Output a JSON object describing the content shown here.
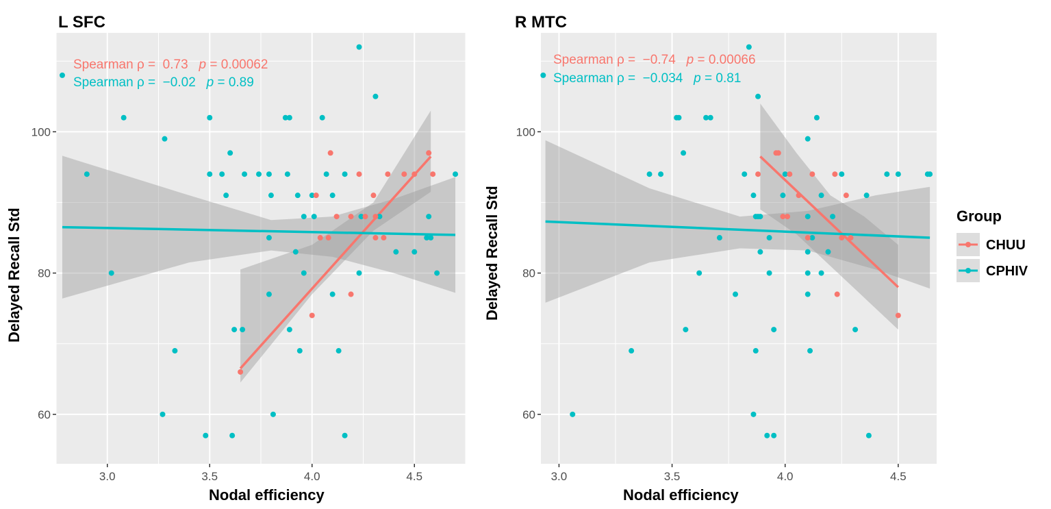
{
  "legend": {
    "title": "Group",
    "entries": [
      {
        "label": "CHUU",
        "color": "#F8766D"
      },
      {
        "label": "CPHIV",
        "color": "#00BFC4"
      }
    ]
  },
  "colors": {
    "panel_bg": "#EBEBEB",
    "grid": "#FFFFFF",
    "ribbon": "#999999"
  },
  "chart_data": [
    {
      "type": "scatter",
      "title": "L SFC",
      "xlabel": "Nodal efficiency",
      "ylabel": "Delayed Recall Std",
      "xlim": [
        2.75,
        4.75
      ],
      "ylim": [
        53,
        114
      ],
      "x_ticks": [
        3.0,
        3.5,
        4.0,
        4.5
      ],
      "x_tick_labels": [
        "3.0",
        "3.5",
        "4.0",
        "4.5"
      ],
      "y_ticks": [
        60,
        80,
        100
      ],
      "y_tick_labels": [
        "60",
        "80",
        "100"
      ],
      "annotations": [
        {
          "group": "CHUU",
          "label": "Spearman ρ = ",
          "rho": "0.73",
          "p_label": "p",
          "p_value": " = 0.00062"
        },
        {
          "group": "CPHIV",
          "label": "Spearman ρ = ",
          "rho": "−0.02",
          "p_label": "p",
          "p_value": " = 0.89"
        }
      ],
      "series": [
        {
          "name": "CHUU",
          "fit": {
            "x": [
              3.65,
              4.58
            ],
            "y": [
              66.5,
              96.5
            ]
          },
          "ribbon": {
            "x": [
              3.65,
              4.0,
              4.3,
              4.58
            ],
            "lower": [
              64.5,
              77,
              86,
              91.5
            ],
            "upper": [
              80.5,
              84,
              90,
              103
            ]
          },
          "points": [
            [
              3.65,
              66
            ],
            [
              4.0,
              74
            ],
            [
              4.02,
              91
            ],
            [
              4.04,
              85
            ],
            [
              4.08,
              85
            ],
            [
              4.09,
              97
            ],
            [
              4.19,
              77
            ],
            [
              4.19,
              88
            ],
            [
              4.23,
              94
            ],
            [
              4.3,
              91
            ],
            [
              4.31,
              85
            ],
            [
              4.31,
              88
            ],
            [
              4.35,
              85
            ],
            [
              4.37,
              94
            ],
            [
              4.45,
              94
            ],
            [
              4.5,
              94
            ],
            [
              4.57,
              97
            ],
            [
              4.59,
              94
            ],
            [
              4.26,
              88
            ],
            [
              4.12,
              88
            ]
          ]
        },
        {
          "name": "CPHIV",
          "fit": {
            "x": [
              2.78,
              4.7
            ],
            "y": [
              86.5,
              85.4
            ]
          },
          "ribbon": {
            "x": [
              2.78,
              3.4,
              3.8,
              4.1,
              4.4,
              4.7
            ],
            "lower": [
              76.4,
              81.5,
              83.2,
              82.3,
              80,
              77.2
            ],
            "upper": [
              96.6,
              91,
              87.5,
              88,
              90.5,
              93.6
            ]
          },
          "points": [
            [
              2.78,
              108
            ],
            [
              2.9,
              94
            ],
            [
              3.02,
              80
            ],
            [
              3.08,
              102
            ],
            [
              3.27,
              60
            ],
            [
              3.28,
              99
            ],
            [
              3.33,
              69
            ],
            [
              3.48,
              57
            ],
            [
              3.5,
              94
            ],
            [
              3.5,
              102
            ],
            [
              3.56,
              94
            ],
            [
              3.58,
              91
            ],
            [
              3.6,
              97
            ],
            [
              3.61,
              57
            ],
            [
              3.62,
              72
            ],
            [
              3.66,
              72
            ],
            [
              3.67,
              94
            ],
            [
              3.74,
              94
            ],
            [
              3.79,
              94
            ],
            [
              3.79,
              85
            ],
            [
              3.79,
              77
            ],
            [
              3.8,
              91
            ],
            [
              3.81,
              60
            ],
            [
              3.87,
              102
            ],
            [
              3.88,
              94
            ],
            [
              3.89,
              102
            ],
            [
              3.89,
              72
            ],
            [
              3.92,
              83
            ],
            [
              3.93,
              91
            ],
            [
              3.94,
              69
            ],
            [
              3.96,
              88
            ],
            [
              3.96,
              80
            ],
            [
              4.0,
              91
            ],
            [
              4.01,
              88
            ],
            [
              4.05,
              102
            ],
            [
              4.07,
              94
            ],
            [
              4.1,
              91
            ],
            [
              4.1,
              77
            ],
            [
              4.13,
              69
            ],
            [
              4.16,
              57
            ],
            [
              4.16,
              94
            ],
            [
              4.23,
              112
            ],
            [
              4.23,
              80
            ],
            [
              4.24,
              88
            ],
            [
              4.31,
              105
            ],
            [
              4.33,
              88
            ],
            [
              4.41,
              83
            ],
            [
              4.5,
              83
            ],
            [
              4.56,
              85
            ],
            [
              4.57,
              88
            ],
            [
              4.58,
              85
            ],
            [
              4.61,
              80
            ],
            [
              4.7,
              94
            ]
          ]
        }
      ]
    },
    {
      "type": "scatter",
      "title": "R MTC",
      "xlabel": "Nodal efficiency",
      "ylabel": "Delayed Recall Std",
      "xlim": [
        2.92,
        4.67
      ],
      "ylim": [
        53,
        114
      ],
      "x_ticks": [
        3.0,
        3.5,
        4.0,
        4.5
      ],
      "x_tick_labels": [
        "3.0",
        "3.5",
        "4.0",
        "4.5"
      ],
      "y_ticks": [
        60,
        80,
        100
      ],
      "y_tick_labels": [
        "60",
        "80",
        "100"
      ],
      "annotations": [
        {
          "group": "CHUU",
          "label": "Spearman ρ = ",
          "rho": "−0.74",
          "p_label": "p",
          "p_value": " = 0.00066"
        },
        {
          "group": "CPHIV",
          "label": "Spearman ρ = ",
          "rho": "−0.034",
          "p_label": "p",
          "p_value": " = 0.81"
        }
      ],
      "series": [
        {
          "name": "CHUU",
          "fit": {
            "x": [
              3.89,
              4.5
            ],
            "y": [
              96.5,
              78
            ]
          },
          "ribbon": {
            "x": [
              3.89,
              4.05,
              4.2,
              4.35,
              4.5
            ],
            "lower": [
              89,
              85.5,
              81,
              76.5,
              72
            ],
            "upper": [
              104,
              97,
              91,
              88,
              84
            ]
          },
          "points": [
            [
              3.88,
              94
            ],
            [
              3.96,
              97
            ],
            [
              3.99,
              88
            ],
            [
              4.02,
              94
            ],
            [
              4.06,
              91
            ],
            [
              4.1,
              85
            ],
            [
              4.12,
              94
            ],
            [
              4.22,
              94
            ],
            [
              4.23,
              77
            ],
            [
              4.25,
              85
            ],
            [
              4.27,
              91
            ],
            [
              4.29,
              85
            ],
            [
              4.5,
              74
            ],
            [
              3.97,
              97
            ],
            [
              4.01,
              88
            ]
          ]
        },
        {
          "name": "CPHIV",
          "fit": {
            "x": [
              2.94,
              4.64
            ],
            "y": [
              87.3,
              85.0
            ]
          },
          "ribbon": {
            "x": [
              2.94,
              3.4,
              3.8,
              4.1,
              4.4,
              4.64
            ],
            "lower": [
              75.8,
              81.5,
              83.5,
              83.2,
              80.5,
              77.8
            ],
            "upper": [
              98.8,
              92,
              88,
              88.8,
              91,
              92.2
            ]
          },
          "points": [
            [
              2.93,
              108
            ],
            [
              3.06,
              60
            ],
            [
              3.32,
              69
            ],
            [
              3.4,
              94
            ],
            [
              3.45,
              94
            ],
            [
              3.52,
              102
            ],
            [
              3.53,
              102
            ],
            [
              3.55,
              97
            ],
            [
              3.56,
              72
            ],
            [
              3.62,
              80
            ],
            [
              3.65,
              102
            ],
            [
              3.67,
              102
            ],
            [
              3.71,
              85
            ],
            [
              3.78,
              77
            ],
            [
              3.82,
              94
            ],
            [
              3.84,
              112
            ],
            [
              3.86,
              91
            ],
            [
              3.86,
              60
            ],
            [
              3.87,
              69
            ],
            [
              3.87,
              88
            ],
            [
              3.88,
              105
            ],
            [
              3.88,
              88
            ],
            [
              3.89,
              83
            ],
            [
              3.89,
              88
            ],
            [
              3.92,
              57
            ],
            [
              3.93,
              85
            ],
            [
              3.93,
              80
            ],
            [
              3.95,
              72
            ],
            [
              3.95,
              57
            ],
            [
              3.99,
              91
            ],
            [
              4.0,
              94
            ],
            [
              4.1,
              99
            ],
            [
              4.1,
              88
            ],
            [
              4.1,
              83
            ],
            [
              4.1,
              80
            ],
            [
              4.1,
              77
            ],
            [
              4.11,
              69
            ],
            [
              4.12,
              85
            ],
            [
              4.14,
              102
            ],
            [
              4.16,
              91
            ],
            [
              4.16,
              80
            ],
            [
              4.19,
              83
            ],
            [
              4.21,
              88
            ],
            [
              4.25,
              94
            ],
            [
              4.31,
              72
            ],
            [
              4.36,
              91
            ],
            [
              4.37,
              57
            ],
            [
              4.45,
              94
            ],
            [
              4.5,
              94
            ],
            [
              4.63,
              94
            ],
            [
              4.64,
              94
            ]
          ]
        }
      ]
    }
  ]
}
